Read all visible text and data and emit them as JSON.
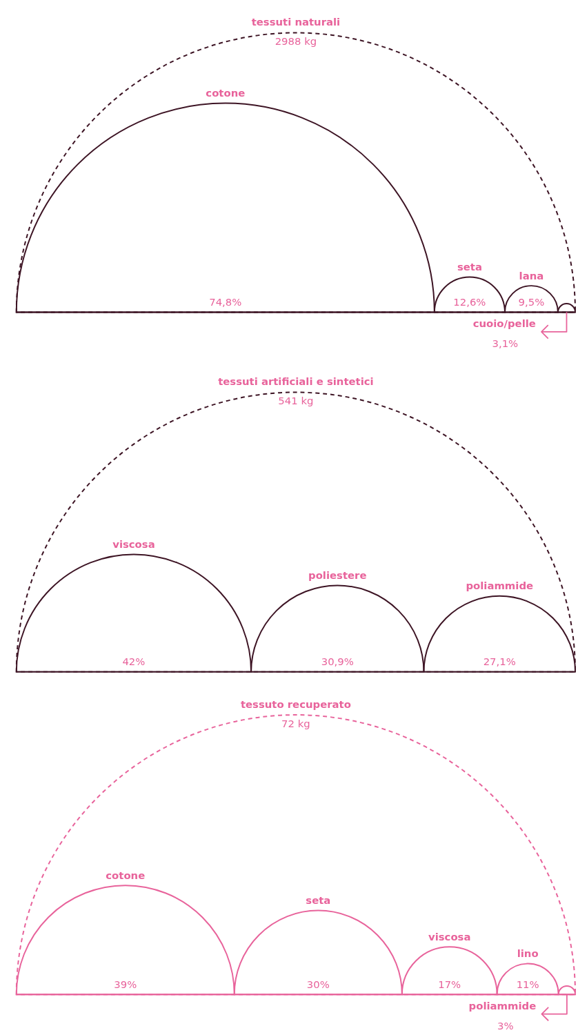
{
  "chart_data": [
    {
      "type": "other",
      "title": "tessuti naturali",
      "subtitle": "2988 kg",
      "color": "#3d1424",
      "categories": [
        "cotone",
        "seta",
        "lana",
        "cuoio/pelle"
      ],
      "values": [
        74.8,
        12.6,
        9.5,
        3.1
      ],
      "value_labels": [
        "74,8%",
        "12,6%",
        "9,5%",
        "3,1%"
      ]
    },
    {
      "type": "other",
      "title": "tessuti artificiali e sintetici",
      "subtitle": "541 kg",
      "color": "#3d1424",
      "categories": [
        "viscosa",
        "poliestere",
        "poliammide"
      ],
      "values": [
        42,
        30.9,
        27.1
      ],
      "value_labels": [
        "42%",
        "30,9%",
        "27,1%"
      ]
    },
    {
      "type": "other",
      "title": "tessuto recuperato",
      "subtitle": "72 kg",
      "color": "#e8639b",
      "categories": [
        "cotone",
        "seta",
        "viscosa",
        "lino",
        "poliammide"
      ],
      "values": [
        39,
        30,
        17,
        11,
        3
      ],
      "value_labels": [
        "39%",
        "30%",
        "17%",
        "11%",
        "3%"
      ]
    }
  ]
}
